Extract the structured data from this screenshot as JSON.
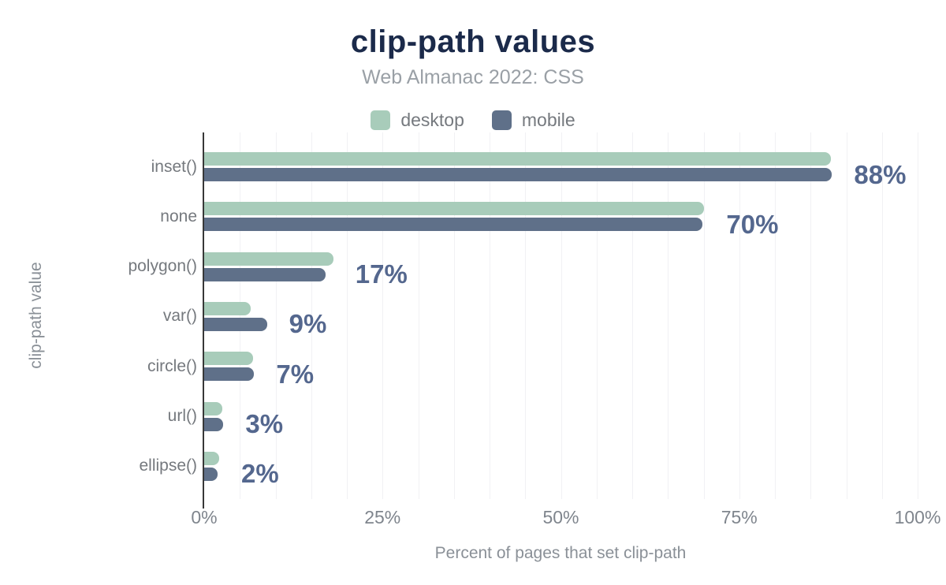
{
  "title": "clip-path values",
  "subtitle": "Web Almanac 2022: CSS",
  "legend": [
    {
      "label": "desktop",
      "color": "#a8ccba"
    },
    {
      "label": "mobile",
      "color": "#5f7089"
    }
  ],
  "colors": {
    "title": "#1b2a4a",
    "subtitle": "#9aa0a6",
    "desktop_series": "#a8ccba",
    "mobile_series": "#5f7089",
    "value_label": "#54678e",
    "axis_line": "#383838",
    "gridline": "#f1f1f4"
  },
  "chart_data": {
    "type": "bar",
    "orientation": "horizontal",
    "title": "clip-path values",
    "subtitle": "Web Almanac 2022: CSS",
    "categories": [
      "inset()",
      "none",
      "polygon()",
      "var()",
      "circle()",
      "url()",
      "ellipse()"
    ],
    "series": [
      {
        "name": "desktop",
        "color": "#a8ccba",
        "values": [
          87.8,
          70.1,
          18.1,
          6.5,
          6.9,
          2.5,
          2.1
        ]
      },
      {
        "name": "mobile",
        "color": "#5f7089",
        "values": [
          88,
          69.8,
          17,
          8.8,
          7,
          2.7,
          1.9
        ]
      }
    ],
    "value_labels": [
      "88%",
      "70%",
      "17%",
      "9%",
      "7%",
      "3%",
      "2%"
    ],
    "xlabel": "Percent of pages that set clip-path",
    "ylabel": "clip-path value",
    "xlim": [
      0,
      100
    ],
    "x_ticks": [
      {
        "label": "0%",
        "pct": 0
      },
      {
        "label": "25%",
        "pct": 25
      },
      {
        "label": "50%",
        "pct": 50
      },
      {
        "label": "75%",
        "pct": 75
      },
      {
        "label": "100%",
        "pct": 100
      }
    ],
    "grid_step_pct": 5,
    "grid": "minor-vertical-on",
    "legend_position": "top-center"
  }
}
